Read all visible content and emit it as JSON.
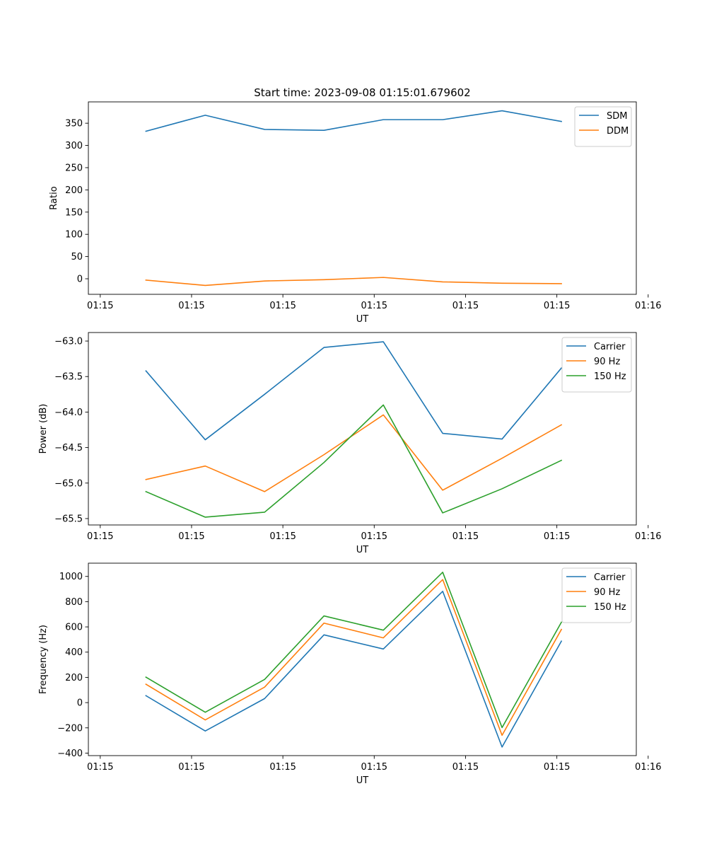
{
  "figure_title": "Start time: 2023-09-08 01:15:01.679602",
  "colors": {
    "blue": "#1f77b4",
    "orange": "#ff7f0e",
    "green": "#2ca02c",
    "axis": "#000000",
    "legend_border": "#cccccc"
  },
  "chart_data": [
    {
      "type": "line",
      "title": "Start time: 2023-09-08 01:15:01.679602",
      "xlabel": "UT",
      "ylabel": "Ratio",
      "xlim": [
        -0.13,
        5.87
      ],
      "ylim": [
        -35,
        398
      ],
      "x_ticks": [
        0,
        1,
        2,
        3,
        4,
        5,
        6
      ],
      "x_tick_labels": [
        "01:15",
        "01:15",
        "01:15",
        "01:15",
        "01:15",
        "01:15",
        "01:16"
      ],
      "y_ticks": [
        0,
        50,
        100,
        150,
        200,
        250,
        300,
        350
      ],
      "y_tick_labels": [
        "0",
        "50",
        "100",
        "150",
        "200",
        "250",
        "300",
        "350"
      ],
      "legend_position": "top-right",
      "grid": false,
      "x": [
        0.5,
        1.15,
        1.8,
        2.45,
        3.1,
        3.75,
        4.4,
        5.05
      ],
      "series": [
        {
          "name": "SDM",
          "color": "#1f77b4",
          "values": [
            332,
            368,
            336,
            334,
            358,
            358,
            378,
            354
          ]
        },
        {
          "name": "DDM",
          "color": "#ff7f0e",
          "values": [
            -3,
            -15,
            -5,
            -2,
            3,
            -7,
            -10,
            -11
          ]
        }
      ]
    },
    {
      "type": "line",
      "title": "",
      "xlabel": "UT",
      "ylabel": "Power (dB)",
      "xlim": [
        -0.13,
        5.87
      ],
      "ylim": [
        -65.59,
        -62.88
      ],
      "x_ticks": [
        0,
        1,
        2,
        3,
        4,
        5,
        6
      ],
      "x_tick_labels": [
        "01:15",
        "01:15",
        "01:15",
        "01:15",
        "01:15",
        "01:15",
        "01:16"
      ],
      "y_ticks": [
        -65.5,
        -65.0,
        -64.5,
        -64.0,
        -63.5,
        -63.0
      ],
      "y_tick_labels": [
        "−65.5",
        "−65.0",
        "−64.5",
        "−64.0",
        "−63.5",
        "−63.0"
      ],
      "legend_position": "top-right",
      "grid": false,
      "x": [
        0.5,
        1.15,
        1.8,
        2.45,
        3.1,
        3.75,
        4.4,
        5.05
      ],
      "series": [
        {
          "name": "Carrier",
          "color": "#1f77b4",
          "values": [
            -63.42,
            -64.39,
            -63.75,
            -63.09,
            -63.01,
            -64.3,
            -64.38,
            -63.38
          ]
        },
        {
          "name": "90 Hz",
          "color": "#ff7f0e",
          "values": [
            -64.95,
            -64.76,
            -65.12,
            -64.6,
            -64.04,
            -65.1,
            -64.65,
            -64.18
          ]
        },
        {
          "name": "150 Hz",
          "color": "#2ca02c",
          "values": [
            -65.12,
            -65.48,
            -65.41,
            -64.71,
            -63.9,
            -65.42,
            -65.08,
            -64.68
          ]
        }
      ]
    },
    {
      "type": "line",
      "title": "",
      "xlabel": "UT",
      "ylabel": "Frequency (Hz)",
      "xlim": [
        -0.13,
        5.87
      ],
      "ylim": [
        -420,
        1105
      ],
      "x_ticks": [
        0,
        1,
        2,
        3,
        4,
        5,
        6
      ],
      "x_tick_labels": [
        "01:15",
        "01:15",
        "01:15",
        "01:15",
        "01:15",
        "01:15",
        "01:16"
      ],
      "y_ticks": [
        -400,
        -200,
        0,
        200,
        400,
        600,
        800,
        1000
      ],
      "y_tick_labels": [
        "−400",
        "−200",
        "0",
        "200",
        "400",
        "600",
        "800",
        "1000"
      ],
      "legend_position": "top-right",
      "grid": false,
      "x": [
        0.5,
        1.15,
        1.8,
        2.45,
        3.1,
        3.75,
        4.4,
        5.05
      ],
      "series": [
        {
          "name": "Carrier",
          "color": "#1f77b4",
          "values": [
            55,
            -225,
            32,
            537,
            425,
            882,
            -352,
            487
          ]
        },
        {
          "name": "90 Hz",
          "color": "#ff7f0e",
          "values": [
            146,
            -137,
            123,
            630,
            513,
            975,
            -259,
            580
          ]
        },
        {
          "name": "150 Hz",
          "color": "#2ca02c",
          "values": [
            202,
            -76,
            184,
            687,
            574,
            1033,
            -198,
            637
          ]
        }
      ]
    }
  ]
}
